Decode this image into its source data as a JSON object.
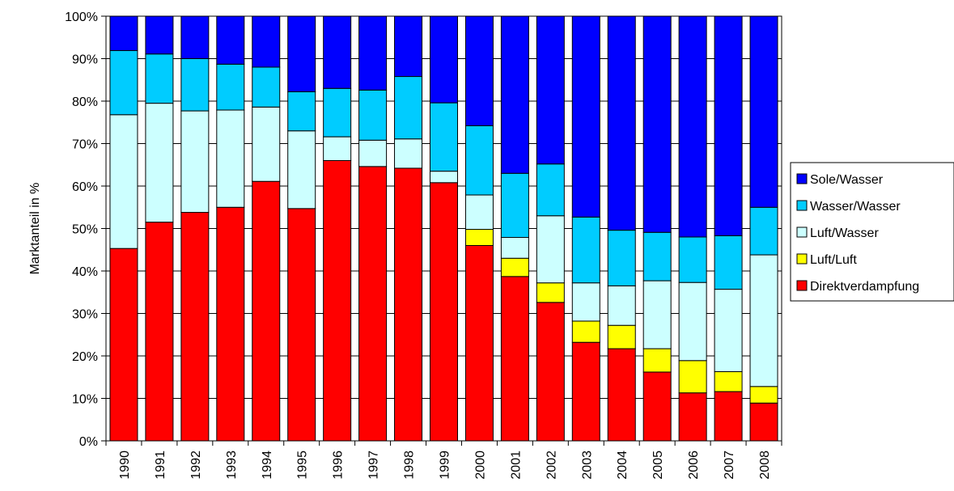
{
  "chart_data": {
    "type": "bar",
    "stacked": true,
    "normalized_100": true,
    "title": "",
    "xlabel": "",
    "ylabel": "Marktanteil in %",
    "ylim": [
      0,
      100
    ],
    "yticks": [
      "0%",
      "10%",
      "20%",
      "30%",
      "40%",
      "50%",
      "60%",
      "70%",
      "80%",
      "90%",
      "100%"
    ],
    "grid": "horizontal",
    "legend_position": "right",
    "categories": [
      "1990",
      "1991",
      "1992",
      "1993",
      "1994",
      "1995",
      "1996",
      "1997",
      "1998",
      "1999",
      "2000",
      "2001",
      "2002",
      "2003",
      "2004",
      "2005",
      "2006",
      "2007",
      "2008"
    ],
    "series": [
      {
        "name": "Direktverdampfung",
        "color": "#ff0000",
        "values": [
          45.3,
          51.5,
          53.8,
          55.0,
          61.1,
          54.7,
          66.0,
          64.6,
          64.2,
          60.8,
          46.0,
          38.7,
          32.6,
          23.2,
          21.7,
          16.2,
          11.3,
          11.6,
          8.9
        ]
      },
      {
        "name": "Luft/Luft",
        "color": "#ffff00",
        "values": [
          0,
          0,
          0,
          0,
          0,
          0,
          0,
          0,
          0,
          0,
          3.8,
          4.3,
          4.6,
          5.0,
          5.5,
          5.5,
          7.6,
          4.7,
          3.9
        ]
      },
      {
        "name": "Luft/Wasser",
        "color": "#ccffff",
        "values": [
          31.5,
          28.0,
          23.9,
          22.9,
          17.5,
          18.3,
          5.6,
          6.2,
          6.9,
          2.7,
          8.1,
          4.9,
          15.8,
          9.0,
          9.3,
          16.0,
          18.4,
          19.4,
          31.0
        ]
      },
      {
        "name": "Wasser/Wasser",
        "color": "#00ccff",
        "values": [
          15.1,
          11.6,
          12.3,
          10.8,
          9.4,
          9.2,
          11.4,
          11.8,
          14.7,
          16.1,
          16.3,
          15.1,
          12.2,
          15.5,
          13.1,
          11.4,
          10.7,
          12.6,
          11.2
        ]
      },
      {
        "name": "Sole/Wasser",
        "color": "#0000ff",
        "values": [
          8.1,
          8.9,
          10.0,
          11.3,
          12.0,
          17.8,
          17.0,
          17.4,
          14.2,
          20.4,
          25.8,
          37.0,
          34.8,
          47.3,
          50.4,
          50.9,
          52.0,
          51.7,
          45.0
        ]
      }
    ],
    "legend_order": [
      "Sole/Wasser",
      "Wasser/Wasser",
      "Luft/Wasser",
      "Luft/Luft",
      "Direktverdampfung"
    ]
  }
}
